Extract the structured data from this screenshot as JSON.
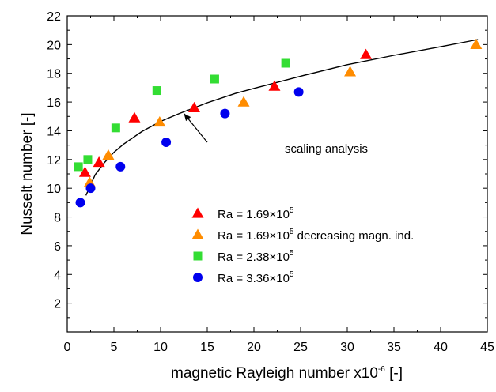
{
  "chart_data": {
    "type": "scatter",
    "xlabel": "magnetic Rayleigh number x10",
    "xlabel_exponent": "-6",
    "xlabel_unit": " [-]",
    "ylabel": "Nusselt number [-]",
    "xlim": [
      0,
      45
    ],
    "ylim": [
      0,
      22
    ],
    "x_ticks": [
      0,
      5,
      10,
      15,
      20,
      25,
      30,
      35,
      40,
      45
    ],
    "x_tick_labels": [
      "0",
      "5",
      "10",
      "15",
      "20",
      "25",
      "30",
      "35",
      "40",
      "45"
    ],
    "y_ticks": [
      2,
      4,
      6,
      8,
      10,
      12,
      14,
      16,
      18,
      20,
      22
    ],
    "y_tick_labels": [
      "2",
      "4",
      "6",
      "8",
      "10",
      "12",
      "14",
      "16",
      "18",
      "20",
      "22"
    ],
    "grid": false,
    "legend_position": "center",
    "series": [
      {
        "name": "Ra = 1.69×10",
        "name_exponent": "5",
        "name_suffix": "",
        "marker": "triangle",
        "color": "#ff0000",
        "x": [
          1.9,
          3.4,
          7.2,
          13.6,
          22.2,
          32.0
        ],
        "y": [
          11.1,
          11.8,
          14.9,
          15.6,
          17.1,
          19.3
        ]
      },
      {
        "name": "Ra = 1.69×10",
        "name_exponent": "5",
        "name_suffix": " decreasing magn. ind.",
        "marker": "triangle",
        "color": "#ff8c00",
        "x": [
          2.4,
          4.4,
          9.9,
          18.9,
          30.3,
          43.8
        ],
        "y": [
          10.4,
          12.3,
          14.6,
          16.0,
          18.1,
          20.0
        ]
      },
      {
        "name": "Ra = 2.38×10",
        "name_exponent": "5",
        "name_suffix": "",
        "marker": "square",
        "color": "#33dd33",
        "x": [
          1.2,
          2.2,
          5.2,
          9.6,
          15.8,
          23.4
        ],
        "y": [
          11.5,
          12.0,
          14.2,
          16.8,
          17.6,
          18.7
        ]
      },
      {
        "name": "Ra = 3.36×10",
        "name_exponent": "5",
        "name_suffix": "",
        "marker": "circle",
        "color": "#0000ee",
        "x": [
          1.4,
          2.5,
          5.7,
          10.6,
          16.9,
          24.8
        ],
        "y": [
          9.0,
          10.0,
          11.5,
          13.2,
          15.2,
          16.7
        ]
      }
    ],
    "fit_line": {
      "color": "#000000",
      "x": [
        2.0,
        3.0,
        4.0,
        5.0,
        6.0,
        8.0,
        10.0,
        12.0,
        15.0,
        18.0,
        20.0,
        25.0,
        30.0,
        35.0,
        40.0,
        44.0
      ],
      "y": [
        9.5,
        10.95,
        11.8,
        12.5,
        13.05,
        13.95,
        14.65,
        15.2,
        15.95,
        16.6,
        16.95,
        17.8,
        18.6,
        19.25,
        19.85,
        20.35
      ]
    },
    "annotation": {
      "text": "scaling analysis",
      "arrow_from": [
        15.0,
        13.2
      ],
      "arrow_to": [
        12.5,
        15.2
      ]
    }
  }
}
